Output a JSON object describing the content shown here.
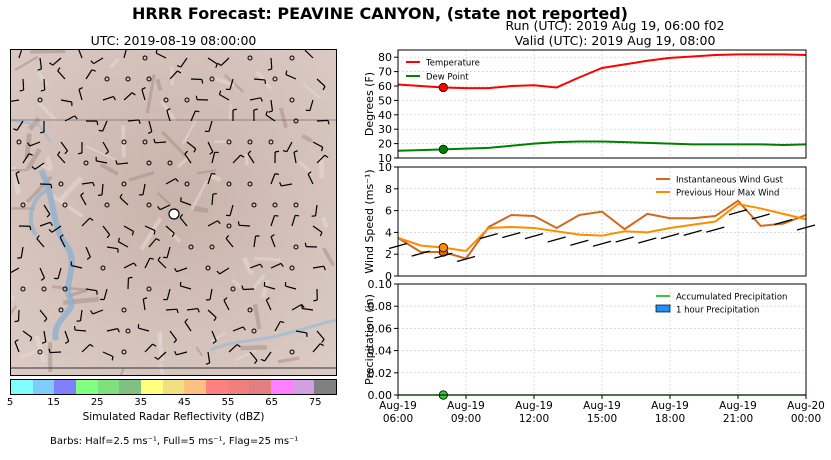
{
  "header": {
    "title": "HRRR Forecast: PEAVINE CANYON, (state not reported)",
    "run": "Run (UTC): 2019 Aug 19, 06:00 f02",
    "valid": "Valid (UTC): 2019 Aug 19, 08:00"
  },
  "map": {
    "title": "UTC: 2019-08-19 08:00:00",
    "colorbar_label": "Simulated Radar Reflectivity (dBZ)",
    "colorbar_ticks": [
      "5",
      "15",
      "25",
      "35",
      "45",
      "55",
      "65",
      "75"
    ],
    "colorbar_colors": [
      "#7fffff",
      "#80ccff",
      "#8080ff",
      "#80ff80",
      "#80e080",
      "#80c080",
      "#ffff80",
      "#f0e080",
      "#ffc080",
      "#ff8080",
      "#f08080",
      "#e08080",
      "#ff80ff",
      "#d0a0e0",
      "#808080"
    ],
    "barb_note": "Barbs: Half=2.5 ms⁻¹, Full=5 ms⁻¹, Flag=25 ms⁻¹"
  },
  "chart_data": [
    {
      "type": "line",
      "ylabel": "Degrees (F)",
      "ylim": [
        10,
        85
      ],
      "yticks": [
        10,
        20,
        30,
        40,
        50,
        60,
        70,
        80
      ],
      "grid": true,
      "legend_position": "top-left",
      "x": [
        0,
        1,
        2,
        3,
        4,
        5,
        6,
        7,
        8,
        9,
        10,
        11,
        12,
        13,
        14,
        15,
        16,
        17,
        18
      ],
      "series": [
        {
          "name": "Temperature",
          "color": "#ff0000",
          "values": [
            61,
            60,
            59,
            58.5,
            58.5,
            60,
            60.5,
            59,
            66,
            72.5,
            75,
            77.5,
            79.5,
            80.5,
            81.5,
            82,
            82,
            82,
            81.5
          ]
        },
        {
          "name": "Dew Point",
          "color": "#008000",
          "values": [
            15,
            15.5,
            16,
            16.5,
            17,
            18.5,
            20,
            21,
            21.5,
            21.5,
            21,
            20.5,
            20,
            19.5,
            19.5,
            19.5,
            19.5,
            19,
            19.5
          ]
        }
      ],
      "marker_index": 2
    },
    {
      "type": "line",
      "ylabel": "Wind Speed (ms⁻¹)",
      "ylim": [
        0,
        10
      ],
      "yticks": [
        0,
        2,
        4,
        6,
        8,
        10
      ],
      "grid": true,
      "legend_position": "top-right",
      "x": [
        0,
        1,
        2,
        3,
        4,
        5,
        6,
        7,
        8,
        9,
        10,
        11,
        12,
        13,
        14,
        15,
        16,
        17,
        18
      ],
      "series": [
        {
          "name": "Instantaneous Wind Gust",
          "color": "#d2691e",
          "values": [
            3.5,
            2.2,
            2.2,
            1.6,
            4.5,
            5.6,
            5.5,
            4.4,
            5.6,
            5.9,
            4.3,
            5.7,
            5.3,
            5.3,
            5.5,
            6.9,
            4.6,
            4.8,
            5.6
          ]
        },
        {
          "name": "Previous Hour Max Wind",
          "color": "#ff8c00",
          "values": [
            3.5,
            2.8,
            2.6,
            2.3,
            4.4,
            4.5,
            4.4,
            4.1,
            3.8,
            3.7,
            4.1,
            4.0,
            4.4,
            4.7,
            5.0,
            6.6,
            6.2,
            5.7,
            5.2
          ]
        }
      ],
      "marker_index": 2
    },
    {
      "type": "line",
      "ylabel": "Precipitation (in)",
      "ylim": [
        0,
        0.1
      ],
      "yticks": [
        "0.00",
        "0.02",
        "0.04",
        "0.06",
        "0.08",
        "0.10"
      ],
      "grid": true,
      "legend_position": "top-right",
      "x": [
        0,
        1,
        2,
        3,
        4,
        5,
        6,
        7,
        8,
        9,
        10,
        11,
        12,
        13,
        14,
        15,
        16,
        17,
        18
      ],
      "series": [
        {
          "name": "Accumulated Precipitation",
          "color": "#32cd32",
          "values": [
            0,
            0,
            0,
            0,
            0,
            0,
            0,
            0,
            0,
            0,
            0,
            0,
            0,
            0,
            0,
            0,
            0,
            0,
            0
          ]
        },
        {
          "name": "1 hour Precipitation",
          "color": "#1e90ff",
          "values": [
            0,
            0,
            0,
            0,
            0,
            0,
            0,
            0,
            0,
            0,
            0,
            0,
            0,
            0,
            0,
            0,
            0,
            0,
            0
          ]
        }
      ],
      "marker_index": 2,
      "xtick_labels": [
        [
          "Aug-19",
          "06:00"
        ],
        [
          "Aug-19",
          "09:00"
        ],
        [
          "Aug-19",
          "12:00"
        ],
        [
          "Aug-19",
          "15:00"
        ],
        [
          "Aug-19",
          "18:00"
        ],
        [
          "Aug-19",
          "21:00"
        ],
        [
          "Aug-20",
          "00:00"
        ]
      ],
      "xtick_positions": [
        0,
        3,
        6,
        9,
        12,
        15,
        18
      ]
    }
  ]
}
